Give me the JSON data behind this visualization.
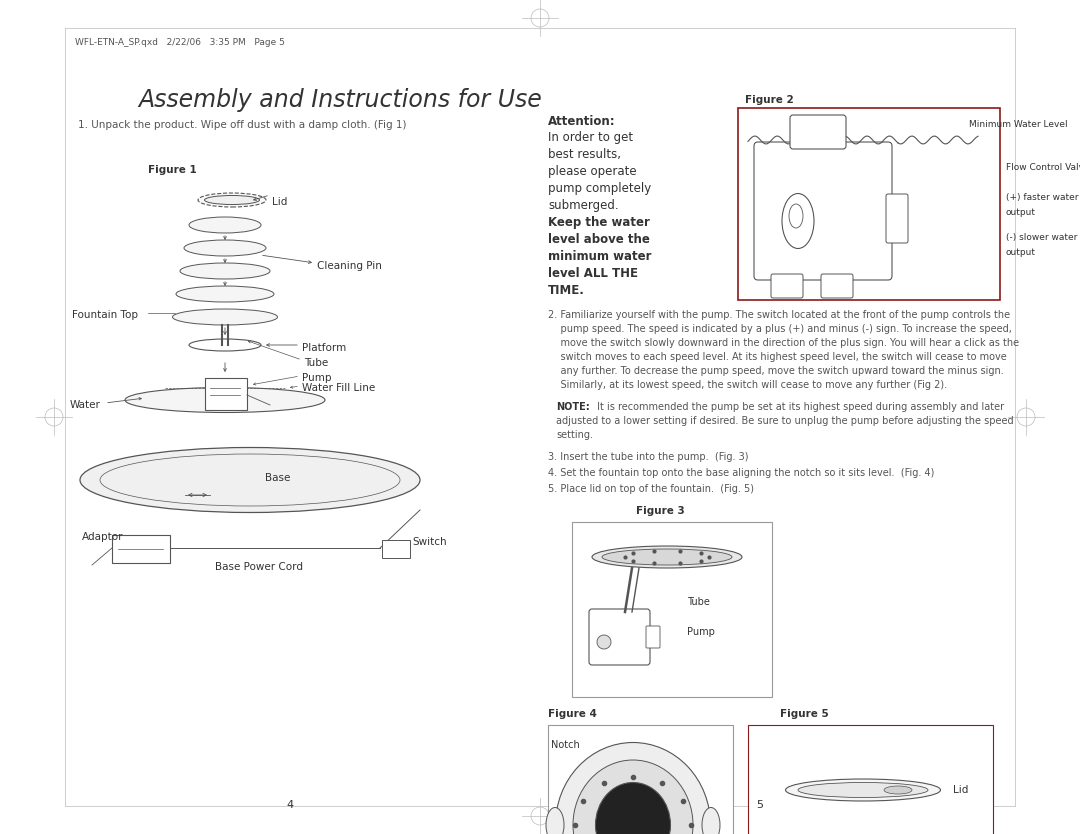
{
  "bg_color": "#ffffff",
  "page_width": 10.8,
  "page_height": 8.34,
  "header_text": "WFL-ETN-A_SP.qxd   2/22/06   3:35 PM   Page 5",
  "title": "Assembly and Instructions for Use",
  "step1": "1. Unpack the product. Wipe off dust with a damp cloth. (Fig 1)",
  "fig1_label": "Figure 1",
  "attention_bold": "Attention:",
  "fig2_label": "Figure 2",
  "fig2_min_water": "Minimum Water Level",
  "fig2_flow_valve": "Flow Control Valve",
  "fig2_faster": "(+) faster water",
  "fig2_faster2": "output",
  "fig2_slower": "(-) slower water",
  "fig2_slower2": "output",
  "step3": "3. Insert the tube into the pump.  (Fig. 3)",
  "step4": "4. Set the fountain top onto the base aligning the notch so it sits level.  (Fig. 4)",
  "step5": "5. Place lid on top of the fountain.  (Fig. 5)",
  "fig3_label": "Figure 3",
  "fig3_tube": "Tube",
  "fig3_pump": "Pump",
  "fig4_label": "Figure 4",
  "fig4_notch": "Notch",
  "fig5_label": "Figure 5",
  "fig5_lid": "Lid",
  "page_num_left": "4",
  "page_num_right": "5",
  "text_color": "#555555",
  "dark_color": "#333333",
  "border_color": "#8b1a1a",
  "gray_border": "#999999"
}
